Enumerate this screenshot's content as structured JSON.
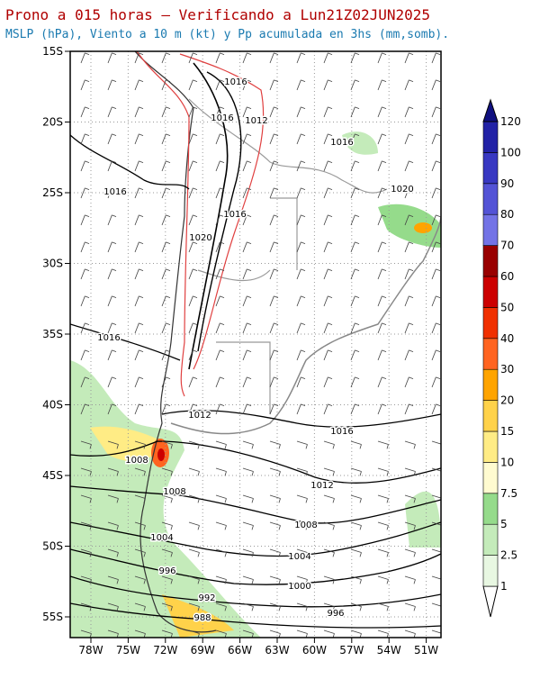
{
  "title": "Prono a 015 horas — Verificando a Lun21Z02JUN2025",
  "subtitle": "MSLP (hPa), Viento a 10 m (kt) y Pp acumulada en 3hs (mm,somb).",
  "lat_labels": [
    "15S",
    "20S",
    "25S",
    "30S",
    "35S",
    "40S",
    "45S",
    "50S",
    "55S"
  ],
  "lon_labels": [
    "78W",
    "75W",
    "72W",
    "69W",
    "66W",
    "63W",
    "60W",
    "57W",
    "54W",
    "51W"
  ],
  "isobar_labels": [
    "1016",
    "1016",
    "1012",
    "1016",
    "1016",
    "1020",
    "1016",
    "1020",
    "1016",
    "1012",
    "1016",
    "1008",
    "1012",
    "1008",
    "1008",
    "1004",
    "1004",
    "996",
    "1000",
    "992",
    "996",
    "988"
  ],
  "colorbar": {
    "labels": [
      "1",
      "2.5",
      "5",
      "7.5",
      "10",
      "15",
      "20",
      "30",
      "40",
      "50",
      "60",
      "70",
      "80",
      "90",
      "100",
      "120"
    ],
    "colors": [
      "#ffffff",
      "#e8f7e2",
      "#c4ebba",
      "#95db8b",
      "#fffbd0",
      "#ffec85",
      "#ffd24a",
      "#ffa400",
      "#ff6420",
      "#f03000",
      "#cc0000",
      "#990000",
      "#7373e6",
      "#5353d6",
      "#3838c2",
      "#2222a6",
      "#101080"
    ]
  }
}
